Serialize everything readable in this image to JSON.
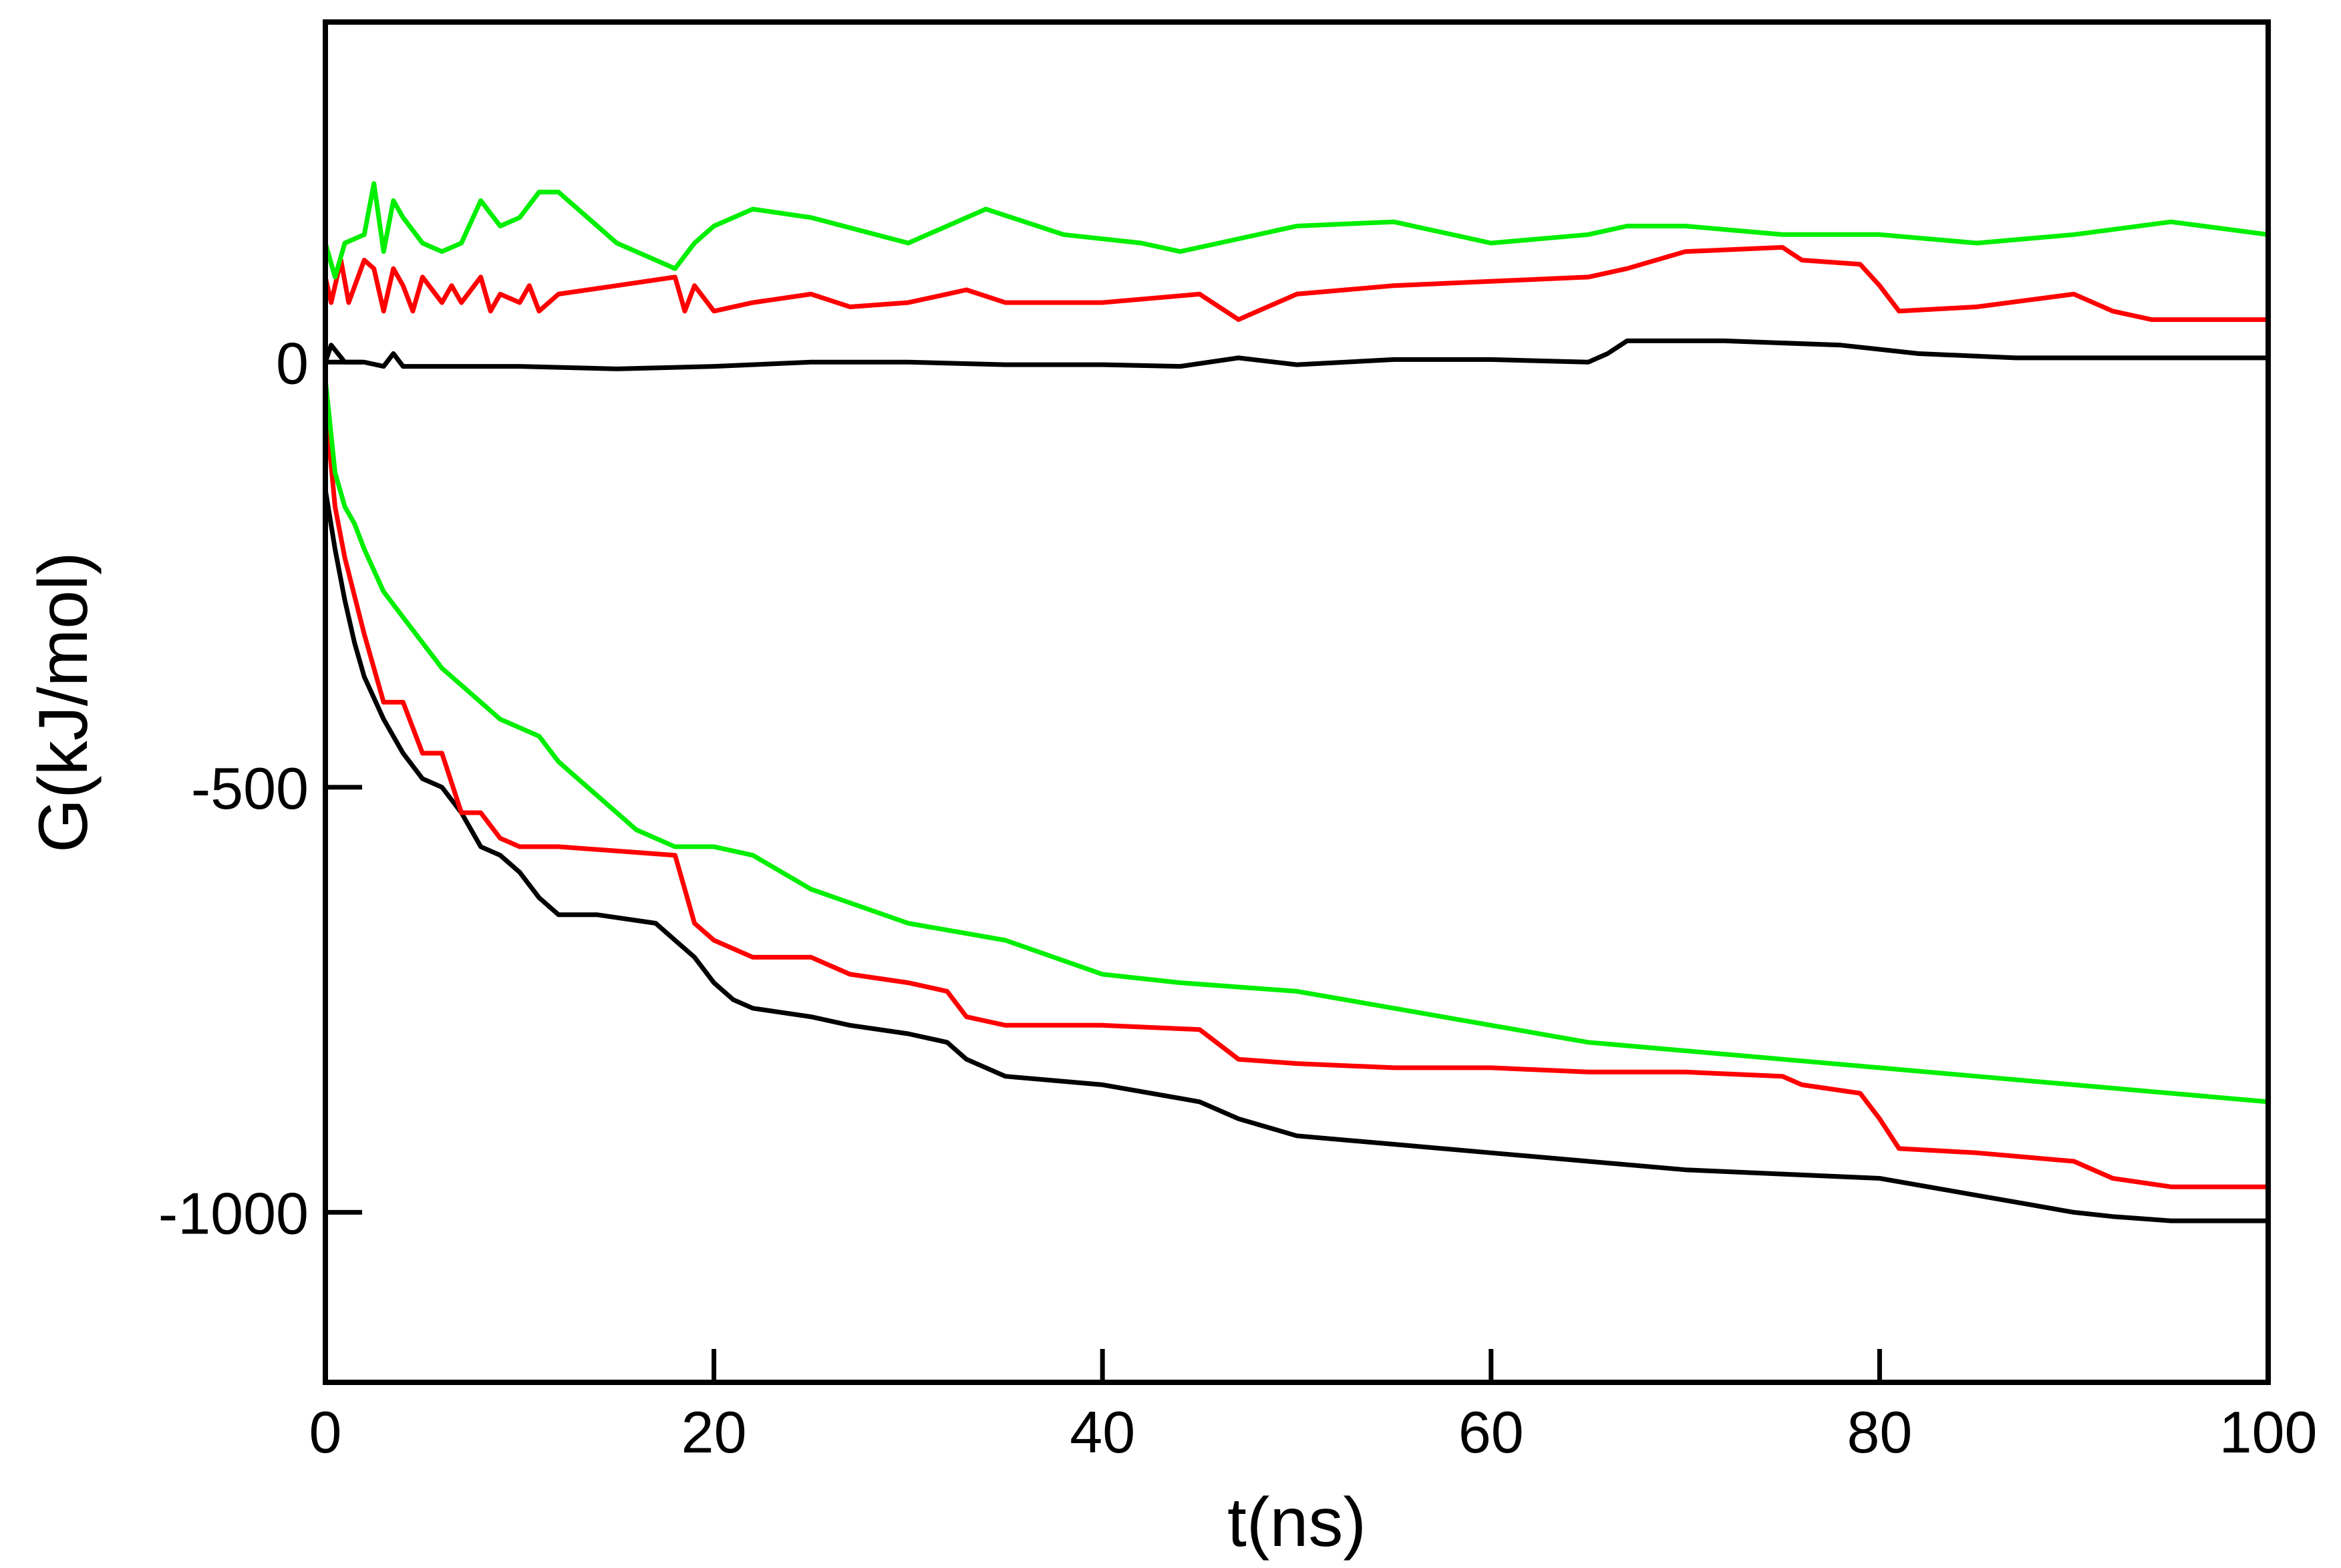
{
  "chart_data": {
    "type": "line",
    "title": "",
    "xlabel": "t(ns)",
    "ylabel": "G(kJ/mol)",
    "xlim": [
      0,
      100
    ],
    "ylim": [
      -1200,
      400
    ],
    "xticks": [
      0,
      20,
      40,
      60,
      80,
      100
    ],
    "yticks": [
      0,
      -500,
      -1000
    ],
    "grid": false,
    "legend": "none",
    "series": [
      {
        "color": "#000000",
        "x": [
          0,
          0.3,
          1,
          2,
          3,
          3.5,
          4,
          6,
          10,
          15,
          20,
          25,
          30,
          35,
          40,
          44,
          47,
          50,
          55,
          60,
          65,
          66,
          67,
          72,
          78,
          82,
          87,
          90,
          95,
          100
        ],
        "y": [
          0,
          20,
          0,
          0,
          -5,
          10,
          -5,
          -5,
          -5,
          -8,
          -5,
          0,
          0,
          -3,
          -3,
          -5,
          5,
          -3,
          3,
          3,
          0,
          10,
          25,
          25,
          20,
          10,
          5,
          5,
          5,
          5
        ]
      },
      {
        "color": "#ff0000",
        "x": [
          0,
          0.3,
          0.8,
          1.2,
          2,
          2.5,
          3,
          3.5,
          4,
          4.5,
          5,
          6,
          6.5,
          7,
          8,
          8.5,
          9,
          10,
          10.5,
          11,
          12,
          15,
          18,
          18.5,
          19,
          20,
          22,
          25,
          27,
          30,
          32,
          33,
          35,
          40,
          45,
          47,
          50,
          55,
          60,
          65,
          67,
          70,
          75,
          76,
          79,
          80,
          81,
          85,
          90,
          92,
          94,
          100
        ],
        "y": [
          100,
          70,
          120,
          70,
          120,
          110,
          60,
          110,
          90,
          60,
          100,
          70,
          90,
          70,
          100,
          60,
          80,
          70,
          90,
          60,
          80,
          90,
          100,
          60,
          90,
          60,
          70,
          80,
          65,
          70,
          80,
          85,
          70,
          70,
          80,
          50,
          80,
          90,
          95,
          100,
          110,
          130,
          135,
          120,
          115,
          90,
          60,
          65,
          80,
          60,
          50,
          50
        ]
      },
      {
        "color": "#00ee00",
        "x": [
          0,
          0.5,
          1,
          2,
          2.5,
          3,
          3.5,
          4,
          5,
          6,
          7,
          8,
          9,
          10,
          11,
          12,
          15,
          18,
          19,
          20,
          22,
          25,
          30,
          34,
          38,
          42,
          44,
          46,
          50,
          55,
          60,
          65,
          67,
          70,
          75,
          80,
          85,
          90,
          95,
          100
        ],
        "y": [
          140,
          100,
          140,
          150,
          210,
          130,
          190,
          170,
          140,
          130,
          140,
          190,
          160,
          170,
          200,
          200,
          140,
          110,
          140,
          160,
          180,
          170,
          140,
          180,
          150,
          140,
          130,
          140,
          160,
          165,
          140,
          150,
          160,
          160,
          150,
          150,
          140,
          150,
          165,
          150
        ]
      },
      {
        "color": "#000000",
        "x": [
          0,
          0.5,
          1,
          1.5,
          2,
          3,
          4,
          5,
          6,
          7,
          8,
          9,
          10,
          11,
          12,
          14,
          17,
          18,
          19,
          20,
          21,
          22,
          25,
          27,
          30,
          32,
          33,
          35,
          40,
          45,
          47,
          50,
          55,
          60,
          65,
          70,
          75,
          80,
          85,
          90,
          92,
          95,
          100
        ],
        "y": [
          -150,
          -220,
          -280,
          -330,
          -370,
          -420,
          -460,
          -490,
          -500,
          -530,
          -570,
          -580,
          -600,
          -630,
          -650,
          -650,
          -660,
          -680,
          -700,
          -730,
          -750,
          -760,
          -770,
          -780,
          -790,
          -800,
          -820,
          -840,
          -850,
          -870,
          -890,
          -910,
          -920,
          -930,
          -940,
          -950,
          -955,
          -960,
          -980,
          -1000,
          -1005,
          -1010,
          -1010
        ]
      },
      {
        "color": "#ff0000",
        "x": [
          0,
          0.5,
          1,
          2,
          3,
          4,
          5,
          6,
          7,
          8,
          9,
          10,
          12,
          15,
          18,
          18.5,
          19,
          20,
          22,
          25,
          27,
          30,
          32,
          33,
          35,
          40,
          45,
          47,
          50,
          55,
          60,
          65,
          70,
          75,
          76,
          79,
          80,
          81,
          85,
          90,
          92,
          95,
          100
        ],
        "y": [
          -50,
          -170,
          -230,
          -320,
          -400,
          -400,
          -460,
          -460,
          -530,
          -530,
          -560,
          -570,
          -570,
          -575,
          -580,
          -620,
          -660,
          -680,
          -700,
          -700,
          -720,
          -730,
          -740,
          -770,
          -780,
          -780,
          -785,
          -820,
          -825,
          -830,
          -830,
          -835,
          -835,
          -840,
          -850,
          -860,
          -890,
          -925,
          -930,
          -940,
          -960,
          -970,
          -970
        ]
      },
      {
        "color": "#00ee00",
        "x": [
          0,
          0.5,
          1,
          1.5,
          2,
          3,
          4,
          5,
          6,
          7,
          8,
          9,
          10,
          11,
          12,
          13,
          14,
          15,
          16,
          18,
          20,
          22,
          25,
          30,
          35,
          40,
          44,
          50,
          55,
          60,
          65,
          70,
          75,
          80,
          85,
          90,
          95,
          100
        ],
        "y": [
          -20,
          -130,
          -170,
          -190,
          -220,
          -270,
          -300,
          -330,
          -360,
          -380,
          -400,
          -420,
          -430,
          -440,
          -470,
          -490,
          -510,
          -530,
          -550,
          -570,
          -570,
          -580,
          -620,
          -660,
          -680,
          -720,
          -730,
          -740,
          -760,
          -780,
          -800,
          -810,
          -820,
          -830,
          -840,
          -850,
          -860,
          -870
        ]
      }
    ]
  }
}
